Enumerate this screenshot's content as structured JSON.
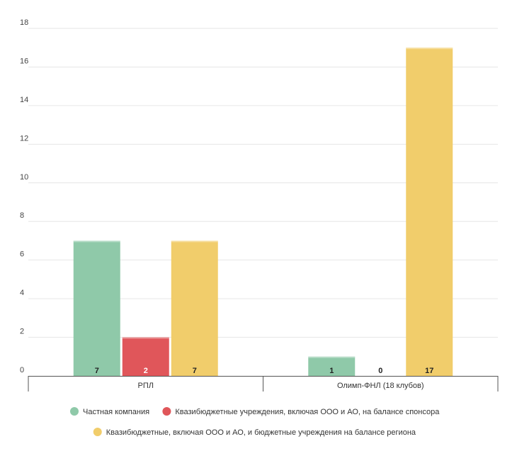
{
  "chart_data": {
    "type": "bar",
    "categories": [
      "РПЛ",
      "Олимп-ФНЛ (18 клубов)"
    ],
    "series": [
      {
        "name": "Частная компания",
        "color": "#8fc9a9",
        "values": [
          7,
          1
        ]
      },
      {
        "name": "Квазибюджетные учреждения, включая ООО и АО, на балансе спонсора",
        "color": "#e0565a",
        "values": [
          2,
          0
        ]
      },
      {
        "name": "Квазибюджетные, включая ООО и АО, и бюджетные учреждения на балансе региона",
        "color": "#f1cd6b",
        "values": [
          7,
          17
        ]
      }
    ],
    "ylim": [
      0,
      18
    ],
    "yticks": [
      0,
      2,
      4,
      6,
      8,
      10,
      12,
      14,
      16,
      18
    ],
    "grid": true,
    "legend_position": "bottom",
    "show_data_labels": true
  }
}
